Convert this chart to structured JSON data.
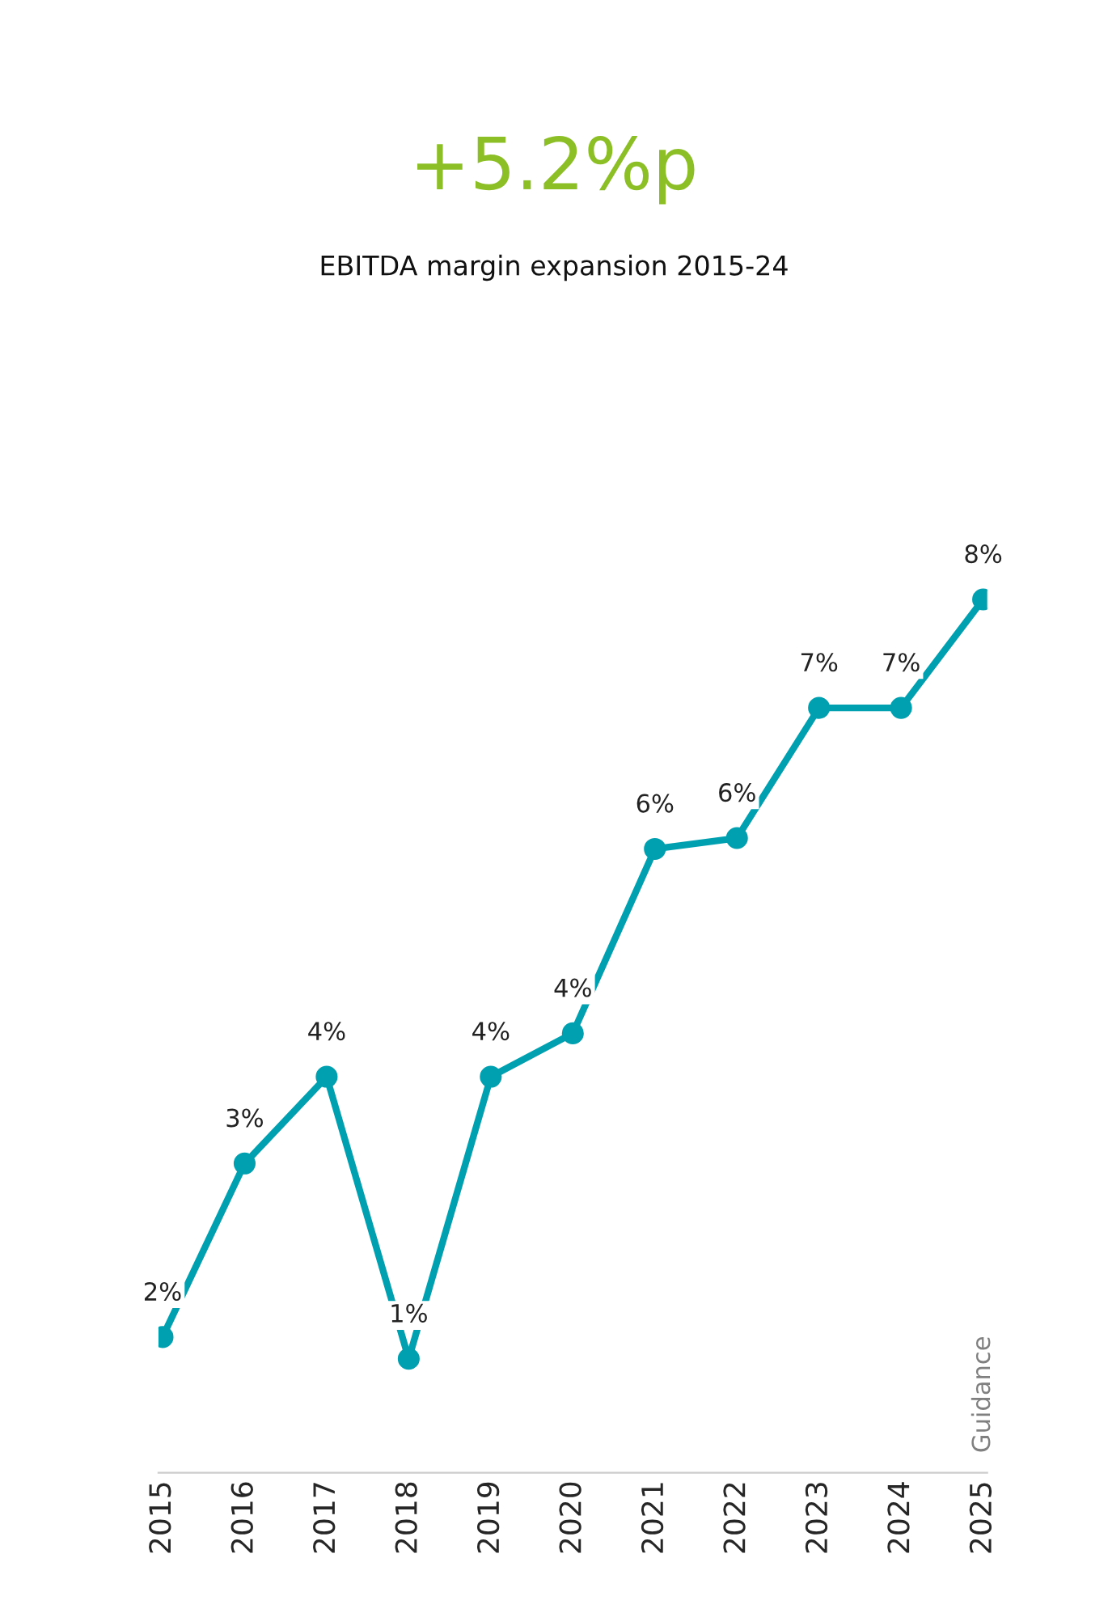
{
  "chart_data": {
    "type": "line",
    "title": "+5.2%p",
    "subtitle": "EBITDA margin expansion 2015-24",
    "categories": [
      "2015",
      "2016",
      "2017",
      "2018",
      "2019",
      "2020",
      "2021",
      "2022",
      "2023",
      "2024",
      "2025"
    ],
    "series": [
      {
        "color": "#00a0b0",
        "values": [
          1.6,
          3.2,
          4.0,
          1.4,
          4.0,
          4.4,
          6.1,
          6.2,
          7.4,
          7.4,
          8.4
        ],
        "value_labels": [
          "2%",
          "3%",
          "4%",
          "1%",
          "4%",
          "4%",
          "6%",
          "6%",
          "7%",
          "7%",
          "8%"
        ]
      }
    ],
    "tick_labels": "x",
    "grid": false,
    "legend": false,
    "marker": "circle",
    "line_style": "solid",
    "annotations": [
      "Guidance"
    ]
  }
}
